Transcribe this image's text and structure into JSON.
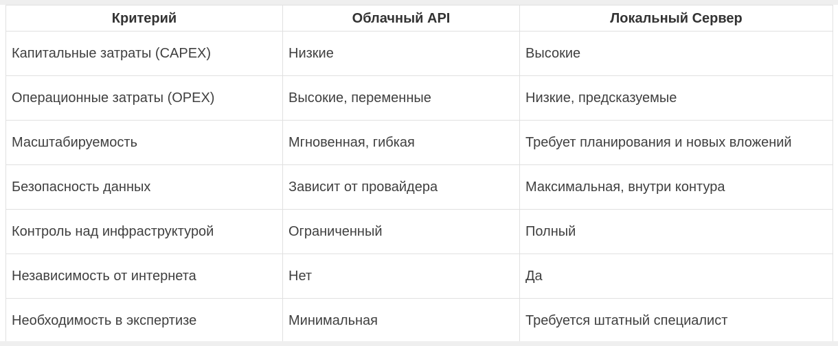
{
  "table": {
    "columns": [
      {
        "key": "criterion",
        "label": "Критерий"
      },
      {
        "key": "cloud_api",
        "label": "Облачный API"
      },
      {
        "key": "local_server",
        "label": "Локальный Сервер"
      }
    ],
    "rows": [
      {
        "criterion": "Капитальные затраты (CAPEX)",
        "cloud_api": "Низкие",
        "local_server": "Высокие"
      },
      {
        "criterion": "Операционные затраты (OPEX)",
        "cloud_api": "Высокие, переменные",
        "local_server": "Низкие, предсказуемые"
      },
      {
        "criterion": "Масштабируемость",
        "cloud_api": "Мгновенная, гибкая",
        "local_server": "Требует планирования и новых вложений"
      },
      {
        "criterion": "Безопасность данных",
        "cloud_api": "Зависит от провайдера",
        "local_server": "Максимальная, внутри контура"
      },
      {
        "criterion": "Контроль над инфраструктурой",
        "cloud_api": "Ограниченный",
        "local_server": "Полный"
      },
      {
        "criterion": "Независимость от интернета",
        "cloud_api": "Нет",
        "local_server": "Да"
      },
      {
        "criterion": "Необходимость в экспертизе",
        "cloud_api": "Минимальная",
        "local_server": "Требуется штатный специалист"
      }
    ]
  },
  "colors": {
    "border": "#e0e0e0",
    "header_text": "#333333",
    "body_text": "#3f3f3f",
    "edge_band": "#efefef",
    "cell_background": "#ffffff"
  }
}
